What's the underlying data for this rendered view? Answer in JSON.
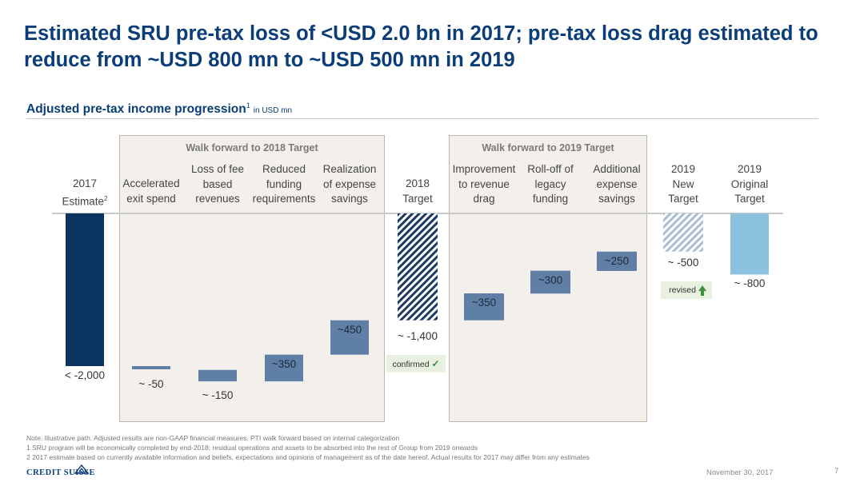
{
  "title": "Estimated SRU pre-tax loss of <USD 2.0 bn in 2017; pre-tax loss drag estimated to reduce from ~USD 800 mn to ~USD 500 mn in 2019",
  "subtitle": {
    "text": "Adjusted pre-tax income progression",
    "footnote_ref": "1",
    "unit": "in USD mn"
  },
  "panels": [
    {
      "title": "Walk forward to 2018 Target"
    },
    {
      "title": "Walk forward to 2019 Target"
    }
  ],
  "chart_data": {
    "type": "waterfall",
    "unit": "USD mn",
    "steps": [
      {
        "label_lines": [
          "2017",
          "Estimate"
        ],
        "label_sup": "2",
        "kind": "total",
        "start": 0,
        "end": -2000,
        "value_label": "< -2,000"
      },
      {
        "label_lines": [
          "Accelerated",
          "exit spend"
        ],
        "kind": "delta",
        "start": -2000,
        "end": -2050,
        "value_label": "~ -50"
      },
      {
        "label_lines": [
          "Loss of fee",
          "based",
          "revenues"
        ],
        "kind": "delta",
        "start": -2050,
        "end": -2200,
        "value_label": "~ -150"
      },
      {
        "label_lines": [
          "Reduced",
          "funding",
          "requirements"
        ],
        "kind": "delta",
        "start": -2200,
        "end": -1850,
        "value_label": "~350"
      },
      {
        "label_lines": [
          "Realization",
          "of expense",
          "savings"
        ],
        "kind": "delta",
        "start": -1850,
        "end": -1400,
        "value_label": "~450"
      },
      {
        "label_lines": [
          "2018",
          "Target"
        ],
        "kind": "target",
        "start": 0,
        "end": -1400,
        "value_label": "~ -1,400",
        "tag": "confirmed",
        "tag_mark": "✓"
      },
      {
        "label_lines": [
          "Improvement",
          "to revenue",
          "drag"
        ],
        "kind": "delta",
        "start": -1400,
        "end": -1050,
        "value_label": "~350"
      },
      {
        "label_lines": [
          "Roll-off of",
          "legacy",
          "funding"
        ],
        "kind": "delta",
        "start": -1050,
        "end": -750,
        "value_label": "~300"
      },
      {
        "label_lines": [
          "Additional",
          "expense",
          "savings"
        ],
        "kind": "delta",
        "start": -750,
        "end": -500,
        "value_label": "~250"
      },
      {
        "label_lines": [
          "2019",
          "New",
          "Target"
        ],
        "kind": "new_target",
        "start": 0,
        "end": -500,
        "value_label": "~ -500",
        "tag": "revised"
      },
      {
        "label_lines": [
          "2019",
          "Original",
          "Target"
        ],
        "kind": "original_target",
        "start": 0,
        "end": -800,
        "value_label": "~ -800"
      }
    ]
  },
  "colors": {
    "title": "#0b3d78",
    "total": "#0b3461",
    "delta": "#5f7fa6",
    "hatch_dark": "#1c3a66",
    "hatch_light": "#a9bdd4",
    "original": "#8cc2de",
    "panel_bg": "#f3f0ec"
  },
  "notes": [
    "Note: Illustrative path. Adjusted results are non-GAAP financial measures. PTI walk forward based on internal categorization",
    "1 SRU program will be economically completed by end-2018; residual operations and assets to be absorbed into the rest of Group from 2019 onwards",
    "2 2017 estimate based on currently available information and beliefs, expectations and opinions of management as of the date hereof. Actual results for 2017 may differ from any estimates"
  ],
  "footer": {
    "date": "November 30, 2017",
    "page": "7",
    "logo": "CREDIT SUISSE"
  }
}
